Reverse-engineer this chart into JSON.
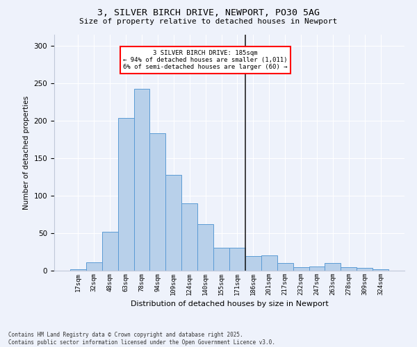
{
  "title": "3, SILVER BIRCH DRIVE, NEWPORT, PO30 5AG",
  "subtitle": "Size of property relative to detached houses in Newport",
  "xlabel": "Distribution of detached houses by size in Newport",
  "ylabel": "Number of detached properties",
  "bar_labels": [
    "17sqm",
    "32sqm",
    "48sqm",
    "63sqm",
    "78sqm",
    "94sqm",
    "109sqm",
    "124sqm",
    "140sqm",
    "155sqm",
    "171sqm",
    "186sqm",
    "201sqm",
    "217sqm",
    "232sqm",
    "247sqm",
    "263sqm",
    "278sqm",
    "309sqm",
    "324sqm"
  ],
  "bar_values": [
    2,
    11,
    52,
    204,
    243,
    183,
    128,
    90,
    62,
    31,
    31,
    19,
    20,
    10,
    5,
    6,
    10,
    5,
    4,
    2
  ],
  "bar_color": "#b8d0ea",
  "bar_edge_color": "#5b9bd5",
  "vline_index": 11,
  "annotation_text_line1": "3 SILVER BIRCH DRIVE: 185sqm",
  "annotation_text_line2": "← 94% of detached houses are smaller (1,011)",
  "annotation_text_line3": "6% of semi-detached houses are larger (60) →",
  "bg_color": "#eef2fb",
  "grid_color": "#ffffff",
  "ylim": [
    0,
    315
  ],
  "yticks": [
    0,
    50,
    100,
    150,
    200,
    250,
    300
  ],
  "footer_line1": "Contains HM Land Registry data © Crown copyright and database right 2025.",
  "footer_line2": "Contains public sector information licensed under the Open Government Licence v3.0."
}
